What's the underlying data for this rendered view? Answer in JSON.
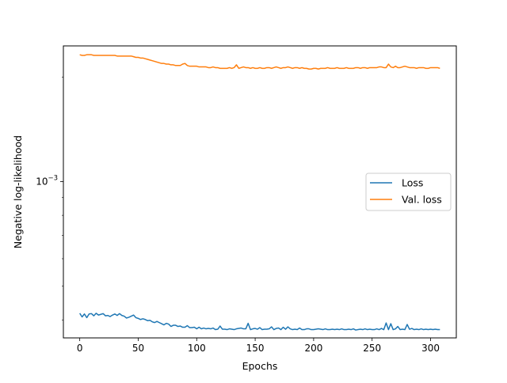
{
  "chart_data": {
    "type": "line",
    "title": "",
    "xlabel": "Epochs",
    "ylabel": "Negative log-likelihood",
    "y_scale": "log",
    "xlim": [
      -14,
      322
    ],
    "ylim": [
      0.000355,
      0.00246
    ],
    "x_ticks": [
      0,
      50,
      100,
      150,
      200,
      250,
      300
    ],
    "x_tick_labels": [
      "0",
      "50",
      "100",
      "150",
      "200",
      "250",
      "300"
    ],
    "y_ticks": [
      0.001
    ],
    "y_tick_labels": [
      {
        "base": "10",
        "exp": "−3"
      }
    ],
    "grid": false,
    "legend_position": "center-right",
    "series": [
      {
        "name": "Loss",
        "color": "#1f77b4",
        "x": [
          0,
          2,
          4,
          6,
          8,
          10,
          12,
          14,
          16,
          18,
          20,
          22,
          24,
          26,
          28,
          30,
          32,
          34,
          36,
          38,
          40,
          42,
          44,
          46,
          48,
          50,
          52,
          54,
          56,
          58,
          60,
          62,
          64,
          66,
          68,
          70,
          72,
          74,
          76,
          78,
          80,
          82,
          84,
          86,
          88,
          90,
          92,
          94,
          96,
          98,
          100,
          102,
          104,
          106,
          108,
          110,
          112,
          114,
          116,
          118,
          120,
          122,
          124,
          126,
          128,
          130,
          132,
          134,
          136,
          138,
          140,
          142,
          144,
          146,
          148,
          150,
          152,
          154,
          156,
          158,
          160,
          162,
          164,
          166,
          168,
          170,
          172,
          174,
          176,
          178,
          180,
          182,
          184,
          186,
          188,
          190,
          192,
          194,
          196,
          198,
          200,
          202,
          204,
          206,
          208,
          210,
          212,
          214,
          216,
          218,
          220,
          222,
          224,
          226,
          228,
          230,
          232,
          234,
          236,
          238,
          240,
          242,
          244,
          246,
          248,
          250,
          252,
          254,
          256,
          258,
          260,
          262,
          264,
          266,
          268,
          270,
          272,
          274,
          276,
          278,
          280,
          282,
          284,
          286,
          288,
          290,
          292,
          294,
          296,
          298,
          300,
          302,
          304,
          306,
          308
        ],
        "y": [
          0.000418,
          0.000408,
          0.000416,
          0.000406,
          0.000416,
          0.000417,
          0.000411,
          0.000418,
          0.000413,
          0.000415,
          0.000417,
          0.000411,
          0.000412,
          0.000409,
          0.000413,
          0.000416,
          0.000412,
          0.000417,
          0.000412,
          0.00041,
          0.000405,
          0.000407,
          0.00041,
          0.000413,
          0.000406,
          0.000404,
          0.000401,
          0.000403,
          0.000401,
          0.000398,
          0.000399,
          0.000395,
          0.000393,
          0.000396,
          0.000393,
          0.00039,
          0.000387,
          0.000391,
          0.000389,
          0.000383,
          0.000386,
          0.000386,
          0.000383,
          0.000384,
          0.000381,
          0.000381,
          0.000385,
          0.00038,
          0.00038,
          0.000381,
          0.000377,
          0.000381,
          0.000377,
          0.000379,
          0.000377,
          0.000378,
          0.000377,
          0.000379,
          0.000375,
          0.000376,
          0.000384,
          0.000376,
          0.000376,
          0.000375,
          0.000377,
          0.000376,
          0.000375,
          0.000377,
          0.000378,
          0.000379,
          0.000377,
          0.000377,
          0.000391,
          0.000375,
          0.000377,
          0.000378,
          0.000376,
          0.00038,
          0.000375,
          0.000376,
          0.000376,
          0.000377,
          0.000382,
          0.000375,
          0.000378,
          0.000379,
          0.000375,
          0.000381,
          0.000376,
          0.000382,
          0.000377,
          0.000375,
          0.000376,
          0.000375,
          0.000379,
          0.000375,
          0.000375,
          0.000377,
          0.000377,
          0.000375,
          0.000375,
          0.000376,
          0.000377,
          0.000376,
          0.000375,
          0.000377,
          0.000375,
          0.000375,
          0.000376,
          0.000375,
          0.000376,
          0.000375,
          0.000377,
          0.000375,
          0.000375,
          0.000376,
          0.000375,
          0.000377,
          0.000374,
          0.000375,
          0.000376,
          0.000375,
          0.000377,
          0.000375,
          0.000376,
          0.000375,
          0.000375,
          0.000377,
          0.000375,
          0.000378,
          0.000375,
          0.000392,
          0.000375,
          0.00039,
          0.000375,
          0.000377,
          0.000383,
          0.000375,
          0.000376,
          0.000375,
          0.000388,
          0.000376,
          0.000378,
          0.000375,
          0.000376,
          0.000375,
          0.000377,
          0.000375,
          0.000376,
          0.000375,
          0.000376,
          0.000375,
          0.000376,
          0.000375,
          0.000375
        ]
      },
      {
        "name": "Val. loss",
        "color": "#ff7f0e",
        "x": [
          0,
          2,
          4,
          6,
          8,
          10,
          12,
          14,
          16,
          18,
          20,
          22,
          24,
          26,
          28,
          30,
          32,
          34,
          36,
          38,
          40,
          42,
          44,
          46,
          48,
          50,
          52,
          54,
          56,
          58,
          60,
          62,
          64,
          66,
          68,
          70,
          72,
          74,
          76,
          78,
          80,
          82,
          84,
          86,
          88,
          90,
          92,
          94,
          96,
          98,
          100,
          102,
          104,
          106,
          108,
          110,
          112,
          114,
          116,
          118,
          120,
          122,
          124,
          126,
          128,
          130,
          132,
          134,
          136,
          138,
          140,
          142,
          144,
          146,
          148,
          150,
          152,
          154,
          156,
          158,
          160,
          162,
          164,
          166,
          168,
          170,
          172,
          174,
          176,
          178,
          180,
          182,
          184,
          186,
          188,
          190,
          192,
          194,
          196,
          198,
          200,
          202,
          204,
          206,
          208,
          210,
          212,
          214,
          216,
          218,
          220,
          222,
          224,
          226,
          228,
          230,
          232,
          234,
          236,
          238,
          240,
          242,
          244,
          246,
          248,
          250,
          252,
          254,
          256,
          258,
          260,
          262,
          264,
          266,
          268,
          270,
          272,
          274,
          276,
          278,
          280,
          282,
          284,
          286,
          288,
          290,
          292,
          294,
          296,
          298,
          300,
          302,
          304,
          306,
          308
        ],
        "y": [
          0.00232,
          0.00231,
          0.00231,
          0.00232,
          0.00232,
          0.00232,
          0.00231,
          0.00231,
          0.00231,
          0.00231,
          0.00231,
          0.00231,
          0.00231,
          0.00231,
          0.00231,
          0.00231,
          0.0023,
          0.0023,
          0.0023,
          0.0023,
          0.0023,
          0.0023,
          0.0023,
          0.00229,
          0.00228,
          0.00228,
          0.00227,
          0.00227,
          0.00226,
          0.00225,
          0.00224,
          0.00223,
          0.00222,
          0.00221,
          0.0022,
          0.00219,
          0.00219,
          0.00218,
          0.00218,
          0.00217,
          0.00217,
          0.00216,
          0.00216,
          0.00216,
          0.00218,
          0.00219,
          0.00216,
          0.00215,
          0.00215,
          0.00215,
          0.00215,
          0.00214,
          0.00214,
          0.00214,
          0.00214,
          0.00213,
          0.00213,
          0.00214,
          0.00213,
          0.00213,
          0.00212,
          0.00212,
          0.00212,
          0.00212,
          0.00213,
          0.00212,
          0.00213,
          0.00217,
          0.00212,
          0.00213,
          0.00214,
          0.00213,
          0.00213,
          0.00212,
          0.00213,
          0.00212,
          0.00212,
          0.00213,
          0.00212,
          0.00212,
          0.00213,
          0.00213,
          0.00212,
          0.00213,
          0.00214,
          0.00213,
          0.00212,
          0.00213,
          0.00213,
          0.00214,
          0.00213,
          0.00212,
          0.00213,
          0.00213,
          0.00212,
          0.00213,
          0.00212,
          0.00212,
          0.00211,
          0.00211,
          0.00212,
          0.00212,
          0.00211,
          0.00212,
          0.00212,
          0.00212,
          0.00213,
          0.00212,
          0.00212,
          0.00212,
          0.00213,
          0.00212,
          0.00212,
          0.00212,
          0.00213,
          0.00212,
          0.00212,
          0.00212,
          0.00213,
          0.00213,
          0.00212,
          0.00213,
          0.00213,
          0.00212,
          0.00213,
          0.00213,
          0.00213,
          0.00213,
          0.00214,
          0.00214,
          0.00213,
          0.00213,
          0.00218,
          0.00214,
          0.00213,
          0.00215,
          0.00213,
          0.00213,
          0.00214,
          0.00215,
          0.00214,
          0.00213,
          0.00213,
          0.00213,
          0.00212,
          0.00213,
          0.00213,
          0.00213,
          0.00212,
          0.00212,
          0.00213,
          0.00213,
          0.00213,
          0.00213,
          0.00212
        ]
      }
    ]
  }
}
